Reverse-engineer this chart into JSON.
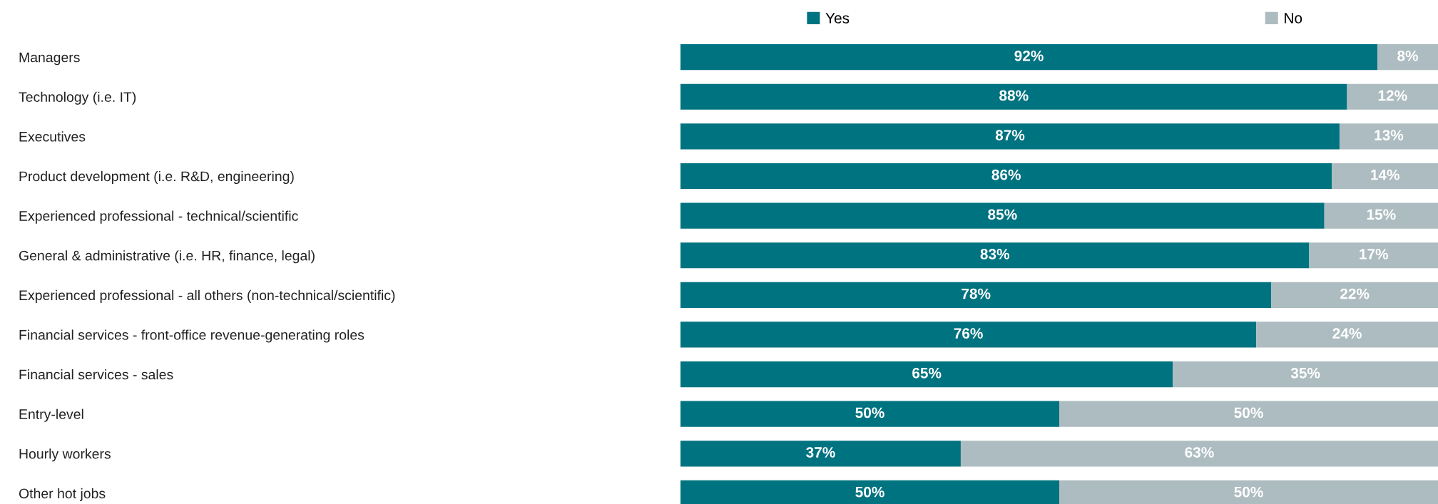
{
  "chart_data": {
    "type": "bar",
    "orientation": "horizontal",
    "stacked": true,
    "legend": "top",
    "tick_labels": "y",
    "categories": [
      "Managers",
      "Technology (i.e. IT)",
      "Executives",
      "Product development (i.e. R&D, engineering)",
      "Experienced professional - technical/scientific",
      "General & administrative (i.e. HR, finance, legal)",
      "Experienced professional - all others (non-technical/scientific)",
      "Financial services - front-office revenue-generating roles",
      "Financial services - sales",
      "Entry-level",
      "Hourly workers",
      "Other hot jobs"
    ],
    "series": [
      {
        "name": "Yes",
        "color": "#007380",
        "values": [
          92,
          88,
          87,
          86,
          85,
          83,
          78,
          76,
          65,
          50,
          37,
          50
        ],
        "value_labels": [
          "92%",
          "88%",
          "87%",
          "86%",
          "85%",
          "83%",
          "78%",
          "76%",
          "65%",
          "50%",
          "37%",
          "50%"
        ]
      },
      {
        "name": "No",
        "color": "#adbcc0",
        "values": [
          8,
          12,
          13,
          14,
          15,
          17,
          22,
          24,
          35,
          50,
          63,
          50
        ],
        "value_labels": [
          "8%",
          "12%",
          "13%",
          "14%",
          "15%",
          "17%",
          "22%",
          "24%",
          "35%",
          "50%",
          "63%",
          "50%"
        ]
      }
    ]
  }
}
